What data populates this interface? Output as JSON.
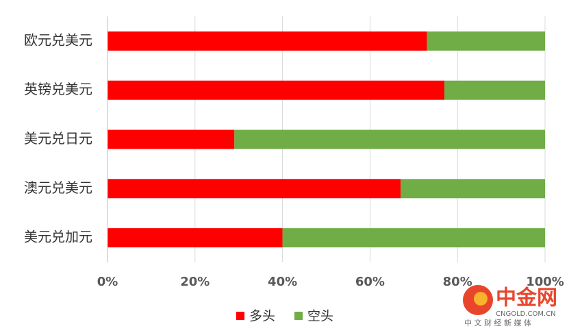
{
  "chart_data": {
    "type": "stacked-barh",
    "categories": [
      "欧元兑美元",
      "英镑兑美元",
      "美元兑日元",
      "澳元兑美元",
      "美元兑加元"
    ],
    "series": [
      {
        "name": "多头",
        "color": "#ff0000",
        "values": [
          73,
          77,
          29,
          67,
          40
        ]
      },
      {
        "name": "空头",
        "color": "#70ad47",
        "values": [
          27,
          23,
          71,
          33,
          60
        ]
      }
    ],
    "xlim": [
      0,
      100
    ],
    "xticks": [
      {
        "value": 0,
        "label": "0%"
      },
      {
        "value": 20,
        "label": "20%"
      },
      {
        "value": 40,
        "label": "40%"
      },
      {
        "value": 60,
        "label": "60%"
      },
      {
        "value": 80,
        "label": "80%"
      },
      {
        "value": 100,
        "label": "100%"
      }
    ],
    "grid": true,
    "legend": "bottom"
  },
  "watermark": {
    "brand": "中金网",
    "domain": "CNGOLD.COM.CN",
    "slogan": "中 文 财 经 新 媒 体"
  }
}
